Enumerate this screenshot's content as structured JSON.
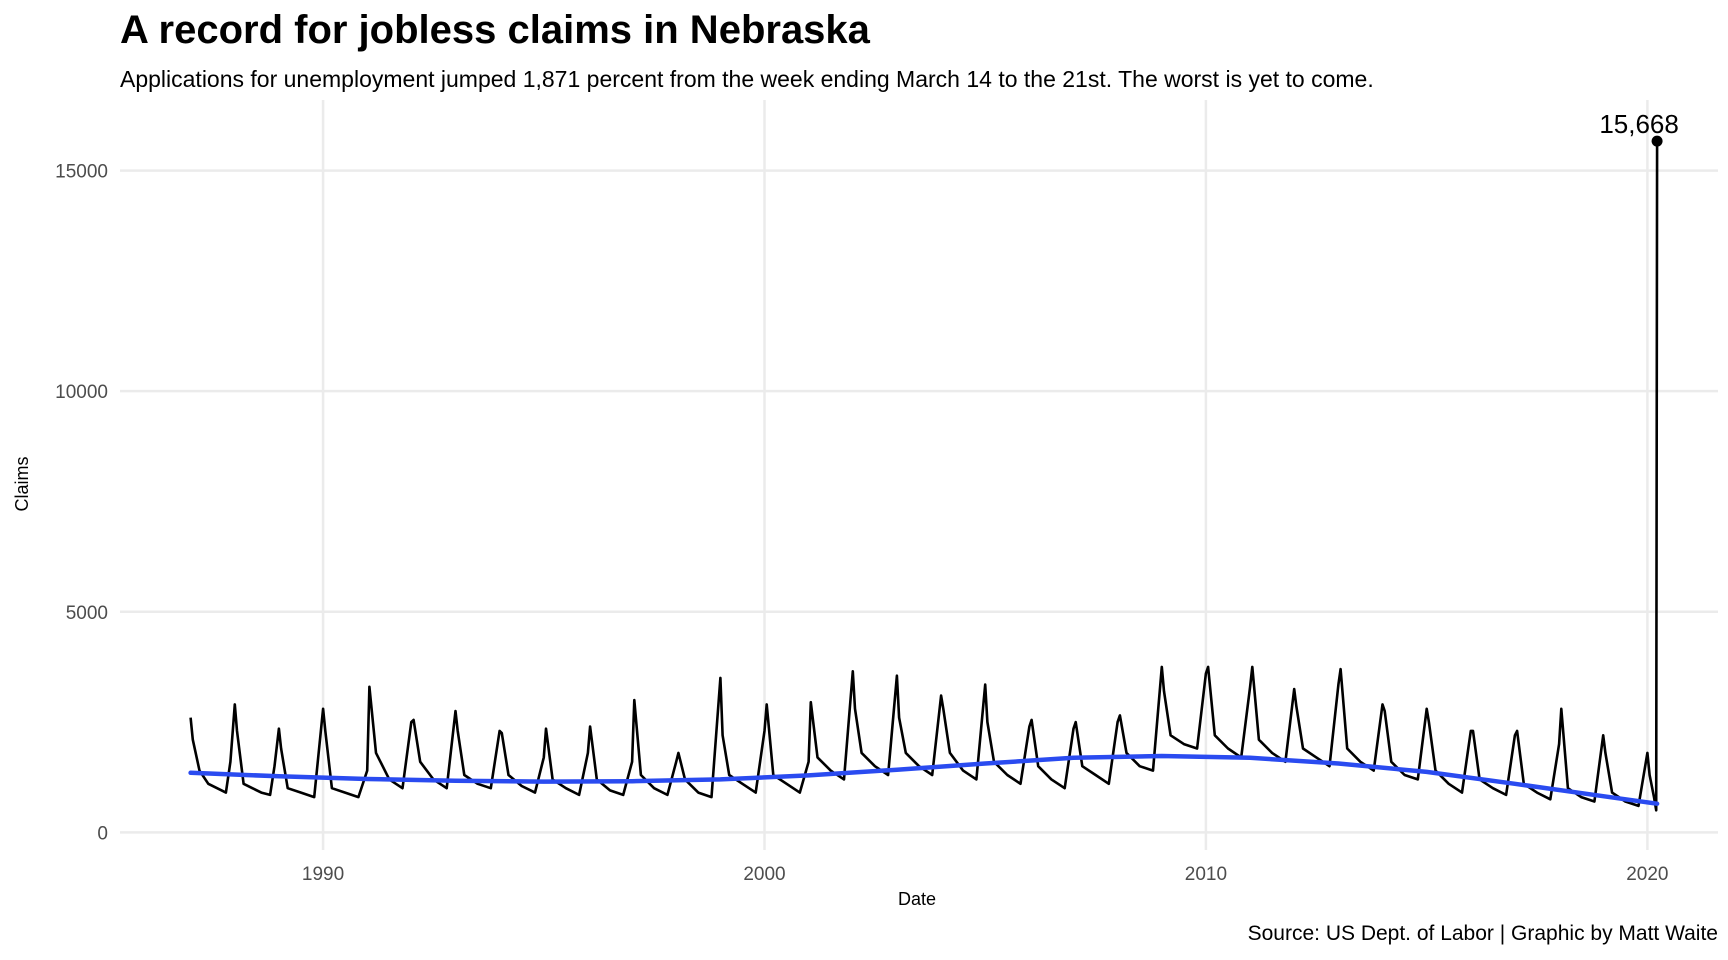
{
  "chart_data": {
    "type": "line",
    "title": "A record for jobless claims in Nebraska",
    "subtitle": "Applications for unemployment jumped 1,871 percent from the week ending March 14 to the 21st. The worst is yet to come.",
    "caption": "Source: US Dept. of Labor  |  Graphic by Matt Waite",
    "xlabel": "Date",
    "ylabel": "Claims",
    "xlim": [
      1985.4,
      2021.6
    ],
    "ylim": [
      -400,
      16600
    ],
    "x_ticks": [
      1990,
      2000,
      2010,
      2020
    ],
    "y_ticks": [
      0,
      5000,
      10000,
      15000
    ],
    "x_tick_labels": [
      "1990",
      "2000",
      "2010",
      "2020"
    ],
    "y_tick_labels": [
      "0",
      "5000",
      "10000",
      "15000"
    ],
    "grid": true,
    "colors": {
      "series": "#000000",
      "trend": "#2a4bf0",
      "grid": "#ebebeb"
    },
    "series": [
      {
        "role": "weekly-claims",
        "x": [
          1987.0,
          1987.05,
          1987.2,
          1987.4,
          1987.6,
          1987.8,
          1987.9,
          1988.0,
          1988.05,
          1988.2,
          1988.4,
          1988.6,
          1988.8,
          1988.9,
          1989.0,
          1989.05,
          1989.2,
          1989.5,
          1989.8,
          1990.0,
          1990.05,
          1990.2,
          1990.5,
          1990.8,
          1991.0,
          1991.05,
          1991.2,
          1991.5,
          1991.8,
          1992.0,
          1992.05,
          1992.2,
          1992.5,
          1992.8,
          1993.0,
          1993.05,
          1993.2,
          1993.5,
          1993.8,
          1994.0,
          1994.05,
          1994.2,
          1994.5,
          1994.8,
          1995.0,
          1995.05,
          1995.2,
          1995.5,
          1995.8,
          1996.0,
          1996.05,
          1996.2,
          1996.5,
          1996.8,
          1997.0,
          1997.05,
          1997.2,
          1997.5,
          1997.8,
          1998.0,
          1998.05,
          1998.2,
          1998.5,
          1998.8,
          1999.0,
          1999.05,
          1999.2,
          1999.5,
          1999.8,
          2000.0,
          2000.05,
          2000.2,
          2000.5,
          2000.8,
          2001.0,
          2001.05,
          2001.2,
          2001.5,
          2001.8,
          2002.0,
          2002.05,
          2002.2,
          2002.5,
          2002.8,
          2003.0,
          2003.05,
          2003.2,
          2003.5,
          2003.8,
          2004.0,
          2004.05,
          2004.2,
          2004.5,
          2004.8,
          2005.0,
          2005.05,
          2005.2,
          2005.5,
          2005.8,
          2006.0,
          2006.05,
          2006.2,
          2006.5,
          2006.8,
          2007.0,
          2007.05,
          2007.2,
          2007.5,
          2007.8,
          2008.0,
          2008.05,
          2008.2,
          2008.5,
          2008.8,
          2009.0,
          2009.05,
          2009.2,
          2009.5,
          2009.8,
          2010.0,
          2010.05,
          2010.2,
          2010.5,
          2010.8,
          2011.0,
          2011.05,
          2011.2,
          2011.5,
          2011.8,
          2012.0,
          2012.05,
          2012.2,
          2012.5,
          2012.8,
          2013.0,
          2013.05,
          2013.2,
          2013.5,
          2013.8,
          2014.0,
          2014.05,
          2014.2,
          2014.5,
          2014.8,
          2015.0,
          2015.05,
          2015.2,
          2015.5,
          2015.8,
          2016.0,
          2016.05,
          2016.2,
          2016.5,
          2016.8,
          2017.0,
          2017.05,
          2017.2,
          2017.5,
          2017.8,
          2018.0,
          2018.05,
          2018.2,
          2018.5,
          2018.8,
          2019.0,
          2019.05,
          2019.2,
          2019.5,
          2019.8,
          2020.0,
          2020.05,
          2020.15,
          2020.2,
          2020.22
        ],
        "y": [
          2600,
          2100,
          1400,
          1100,
          1000,
          900,
          1600,
          2900,
          2300,
          1100,
          1000,
          900,
          850,
          1500,
          2350,
          1900,
          1000,
          900,
          800,
          2800,
          2300,
          1000,
          900,
          800,
          1400,
          3300,
          1800,
          1200,
          1000,
          2500,
          2550,
          1600,
          1200,
          1000,
          2750,
          2300,
          1300,
          1100,
          1000,
          2300,
          2250,
          1300,
          1050,
          900,
          1700,
          2350,
          1200,
          1000,
          850,
          1800,
          2400,
          1200,
          950,
          850,
          1600,
          3000,
          1300,
          1000,
          850,
          1600,
          1800,
          1200,
          900,
          800,
          3500,
          2200,
          1300,
          1100,
          900,
          2300,
          2900,
          1300,
          1100,
          900,
          1600,
          2950,
          1700,
          1400,
          1200,
          3650,
          2800,
          1800,
          1500,
          1300,
          3550,
          2600,
          1800,
          1500,
          1300,
          3100,
          2800,
          1800,
          1400,
          1200,
          3350,
          2500,
          1600,
          1300,
          1100,
          2400,
          2550,
          1500,
          1200,
          1000,
          2350,
          2500,
          1500,
          1300,
          1100,
          2500,
          2650,
          1800,
          1500,
          1400,
          3750,
          3200,
          2200,
          2000,
          1900,
          3600,
          3750,
          2200,
          1900,
          1700,
          3300,
          3750,
          2100,
          1800,
          1600,
          3250,
          2850,
          1900,
          1700,
          1500,
          3350,
          3700,
          1900,
          1600,
          1400,
          2900,
          2750,
          1600,
          1300,
          1200,
          2800,
          2500,
          1400,
          1100,
          900,
          2300,
          2300,
          1200,
          1000,
          850,
          2200,
          2300,
          1100,
          900,
          750,
          2000,
          2800,
          1000,
          800,
          700,
          2200,
          1800,
          900,
          700,
          600,
          1800,
          1300,
          800,
          500,
          15668
        ]
      },
      {
        "role": "smoothed-trend",
        "x": [
          1987,
          1989,
          1991,
          1993,
          1995,
          1997,
          1999,
          2001,
          2003,
          2005,
          2007,
          2009,
          2011,
          2013,
          2015,
          2017,
          2019,
          2020.22
        ],
        "y": [
          1350,
          1270,
          1210,
          1170,
          1150,
          1160,
          1200,
          1290,
          1420,
          1560,
          1690,
          1730,
          1690,
          1560,
          1370,
          1100,
          820,
          650
        ]
      }
    ],
    "annotations": [
      {
        "text": "15,668",
        "x": 2020.22,
        "y": 15668
      }
    ]
  }
}
